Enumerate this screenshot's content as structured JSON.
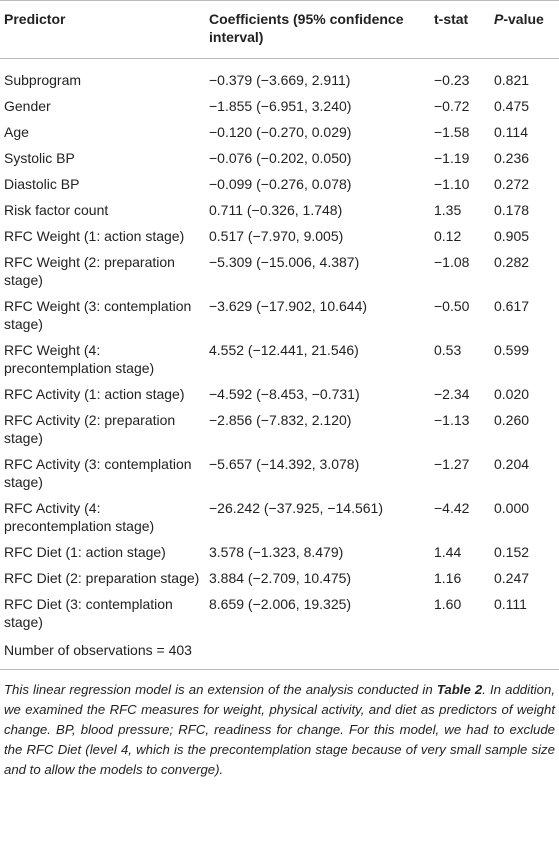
{
  "table": {
    "header": [
      "Predictor",
      "Coefficients (95% confidence interval)",
      "t-stat",
      [
        "P",
        "-value"
      ]
    ],
    "rows": [
      [
        "Subprogram",
        "−0.379 (−3.669, 2.911)",
        "−0.23",
        "0.821"
      ],
      [
        "Gender",
        "−1.855 (−6.951, 3.240)",
        "−0.72",
        "0.475"
      ],
      [
        "Age",
        "−0.120 (−0.270, 0.029)",
        "−1.58",
        "0.114"
      ],
      [
        "Systolic BP",
        "−0.076 (−0.202, 0.050)",
        "−1.19",
        "0.236"
      ],
      [
        "Diastolic BP",
        "−0.099 (−0.276, 0.078)",
        "−1.10",
        "0.272"
      ],
      [
        "Risk factor count",
        "0.711 (−0.326, 1.748)",
        "1.35",
        "0.178"
      ],
      [
        "RFC Weight (1: action stage)",
        "0.517 (−7.970, 9.005)",
        "0.12",
        "0.905"
      ],
      [
        "RFC Weight (2: preparation stage)",
        "−5.309 (−15.006, 4.387)",
        "−1.08",
        "0.282"
      ],
      [
        "RFC Weight (3: contemplation stage)",
        "−3.629 (−17.902, 10.644)",
        "−0.50",
        "0.617"
      ],
      [
        "RFC Weight (4: precontemplation stage)",
        "4.552 (−12.441, 21.546)",
        "0.53",
        "0.599"
      ],
      [
        "RFC Activity (1: action stage)",
        "−4.592 (−8.453, −0.731)",
        "−2.34",
        "0.020"
      ],
      [
        "RFC Activity (2: preparation stage)",
        "−2.856 (−7.832, 2.120)",
        "−1.13",
        "0.260"
      ],
      [
        "RFC Activity (3: contemplation stage)",
        "−5.657 (−14.392, 3.078)",
        "−1.27",
        "0.204"
      ],
      [
        "RFC Activity (4: precontemplation stage)",
        "−26.242 (−37.925, −14.561)",
        "−4.42",
        "0.000"
      ],
      [
        "RFC Diet (1: action stage)",
        "3.578 (−1.323, 8.479)",
        "1.44",
        "0.152"
      ],
      [
        "RFC Diet (2: preparation stage)",
        "3.884 (−2.709, 10.475)",
        "1.16",
        "0.247"
      ],
      [
        "RFC Diet (3: contemplation stage)",
        "8.659 (−2.006, 19.325)",
        "1.60",
        "0.111"
      ]
    ],
    "footer": "Number of observations = 403"
  },
  "note": [
    "This linear regression model is an extension of the analysis conducted in ",
    "Table 2",
    ". In addition, we examined the RFC measures for weight, physical activity, and diet as predictors of weight change. BP, blood pressure; RFC, readiness for change. For this model, we had to exclude the RFC Diet (level 4, which is the precontemplation stage because of very small sample size and to allow the models to converge)."
  ]
}
